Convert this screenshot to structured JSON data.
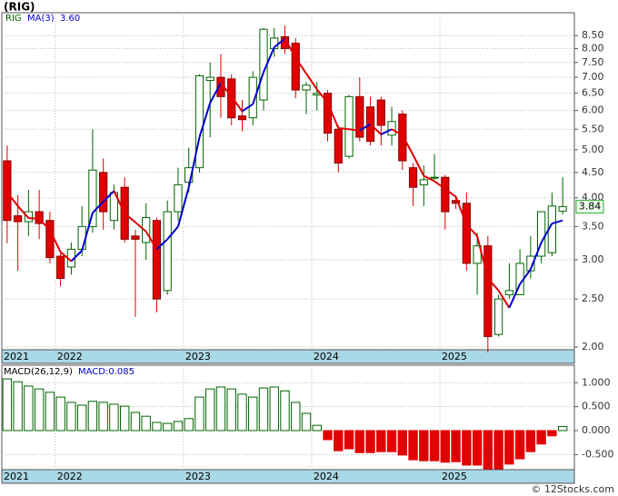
{
  "title": "(RIG)",
  "footer": "© 12Stocks.com",
  "chart_data": [
    {
      "type": "candlestick",
      "name": "RIG",
      "log_scale": true,
      "grid": true,
      "up_color": "#006400",
      "down_color": "#e00000",
      "categories": [
        "2021",
        null,
        null,
        null,
        null,
        "2022",
        null,
        null,
        null,
        null,
        null,
        null,
        null,
        null,
        null,
        null,
        null,
        "2023",
        null,
        null,
        null,
        null,
        null,
        null,
        null,
        null,
        null,
        null,
        null,
        "2024",
        null,
        null,
        null,
        null,
        null,
        null,
        null,
        null,
        null,
        null,
        null,
        "2025",
        null,
        null,
        null,
        null,
        null,
        null,
        null,
        null,
        null,
        null,
        null
      ],
      "open": [
        4.75,
        3.68,
        3.58,
        3.75,
        3.6,
        3.05,
        2.9,
        3.15,
        3.5,
        4.5,
        3.6,
        4.2,
        3.35,
        3.25,
        3.6,
        2.6,
        3.75,
        4.3,
        4.6,
        6.9,
        7.0,
        6.95,
        5.85,
        5.8,
        6.3,
        8.0,
        8.45,
        8.2,
        6.6,
        6.45,
        6.5,
        5.5,
        4.85,
        6.4,
        6.1,
        6.3,
        5.35,
        5.9,
        4.6,
        4.25,
        4.4,
        4.4,
        3.95,
        3.9,
        2.95,
        3.2,
        2.12,
        2.55,
        2.55,
        2.85,
        3.05,
        3.1,
        3.76
      ],
      "high": [
        5.1,
        4.05,
        4.15,
        4.15,
        3.75,
        3.1,
        3.25,
        3.85,
        5.5,
        4.8,
        4.25,
        4.4,
        3.45,
        3.9,
        3.65,
        3.95,
        4.6,
        5.05,
        7.1,
        7.5,
        7.8,
        7.1,
        6.3,
        7.2,
        8.8,
        8.8,
        8.9,
        8.4,
        6.85,
        6.85,
        6.6,
        5.6,
        6.45,
        7.0,
        6.4,
        6.4,
        6.1,
        6.0,
        4.7,
        4.65,
        4.9,
        4.45,
        4.05,
        4.1,
        3.4,
        3.35,
        2.55,
        2.95,
        3.15,
        3.35,
        3.75,
        4.1,
        4.4
      ],
      "low": [
        3.24,
        2.85,
        3.35,
        3.3,
        2.95,
        2.65,
        2.8,
        3.05,
        3.4,
        3.45,
        3.45,
        3.25,
        2.3,
        3.0,
        2.35,
        2.55,
        3.6,
        4.1,
        4.5,
        5.3,
        5.8,
        5.6,
        5.45,
        5.6,
        6.0,
        7.7,
        7.8,
        6.35,
        5.9,
        6.0,
        5.2,
        4.5,
        4.8,
        5.2,
        5.1,
        5.1,
        5.1,
        4.55,
        3.85,
        3.85,
        4.35,
        3.45,
        3.8,
        2.85,
        2.55,
        1.95,
        2.1,
        2.5,
        2.55,
        2.75,
        2.95,
        3.05,
        3.7
      ],
      "close": [
        3.6,
        3.58,
        3.75,
        3.55,
        3.03,
        2.75,
        3.15,
        3.5,
        4.55,
        3.75,
        4.1,
        3.3,
        3.3,
        3.65,
        2.5,
        3.75,
        4.25,
        4.6,
        7.05,
        7.0,
        6.4,
        5.8,
        5.75,
        7.0,
        8.75,
        8.4,
        8.0,
        6.6,
        6.75,
        6.5,
        5.4,
        4.7,
        6.4,
        5.3,
        5.2,
        5.6,
        5.7,
        4.75,
        4.2,
        4.35,
        4.4,
        3.75,
        3.9,
        2.95,
        3.2,
        2.1,
        2.5,
        2.6,
        2.95,
        3.05,
        3.75,
        3.85,
        3.84
      ],
      "ma": {
        "name": "MA(3)",
        "value_label": "3.60",
        "up_color": "#0000cc",
        "down_color": "#e00000",
        "values": [
          4.1,
          3.85,
          3.64,
          3.63,
          3.44,
          3.11,
          2.98,
          3.13,
          3.73,
          3.93,
          4.13,
          3.72,
          3.57,
          3.42,
          3.15,
          3.3,
          3.5,
          4.2,
          5.3,
          6.22,
          6.82,
          6.4,
          5.98,
          6.18,
          7.17,
          8.05,
          8.38,
          7.67,
          7.12,
          6.62,
          6.22,
          5.53,
          5.5,
          5.47,
          5.63,
          5.37,
          5.5,
          5.35,
          4.88,
          4.43,
          4.32,
          4.17,
          4.02,
          3.53,
          3.35,
          2.75,
          2.6,
          2.4,
          2.68,
          2.87,
          3.25,
          3.55,
          3.6
        ]
      },
      "ylim": [
        1.975,
        9.45
      ],
      "yticks": [
        {
          "value": 2,
          "label": "2.00"
        },
        {
          "value": 2.5,
          "label": "2.50"
        },
        {
          "value": 3,
          "label": "3.00"
        },
        {
          "value": 3.5,
          "label": "3.50"
        },
        {
          "value": 4,
          "label": "4.00"
        },
        {
          "value": 4.5,
          "label": "4.50"
        },
        {
          "value": 5,
          "label": "5.00"
        },
        {
          "value": 5.5,
          "label": "5.50"
        },
        {
          "value": 6,
          "label": "6.00"
        },
        {
          "value": 6.5,
          "label": "6.50"
        },
        {
          "value": 7,
          "label": "7.00"
        },
        {
          "value": 7.5,
          "label": "7.50"
        },
        {
          "value": 8,
          "label": "8.00"
        },
        {
          "value": 8.5,
          "label": "8.50"
        }
      ]
    },
    {
      "type": "bar",
      "title": "MACD(26,12,9)",
      "legend": "MACD:0.085",
      "grid": true,
      "pos_color": "#006400",
      "neg_color": "#e00000",
      "categories": [
        "2021",
        null,
        null,
        null,
        null,
        "2022",
        null,
        null,
        null,
        null,
        null,
        null,
        null,
        null,
        null,
        null,
        null,
        "2023",
        null,
        null,
        null,
        null,
        null,
        null,
        null,
        null,
        null,
        null,
        null,
        "2024",
        null,
        null,
        null,
        null,
        null,
        null,
        null,
        null,
        null,
        null,
        null,
        "2025",
        null,
        null,
        null,
        null,
        null,
        null,
        null,
        null,
        null,
        null,
        null
      ],
      "values": [
        1.08,
        1.02,
        0.93,
        0.87,
        0.8,
        0.7,
        0.59,
        0.53,
        0.61,
        0.59,
        0.55,
        0.51,
        0.38,
        0.3,
        0.17,
        0.15,
        0.19,
        0.25,
        0.7,
        0.87,
        0.91,
        0.87,
        0.76,
        0.7,
        0.89,
        0.91,
        0.83,
        0.59,
        0.36,
        0.11,
        -0.19,
        -0.42,
        -0.38,
        -0.46,
        -0.46,
        -0.44,
        -0.44,
        -0.51,
        -0.61,
        -0.63,
        -0.63,
        -0.66,
        -0.65,
        -0.72,
        -0.72,
        -0.8,
        -0.8,
        -0.7,
        -0.59,
        -0.44,
        -0.28,
        -0.11,
        0.085
      ],
      "ylim": [
        -0.816,
        1.366
      ],
      "yticks": [
        {
          "value": 1,
          "label": "1.000"
        },
        {
          "value": 0.5,
          "label": "0.500"
        },
        {
          "value": 0,
          "label": "0.000"
        },
        {
          "value": -0.5,
          "label": "-0.500"
        }
      ]
    }
  ]
}
